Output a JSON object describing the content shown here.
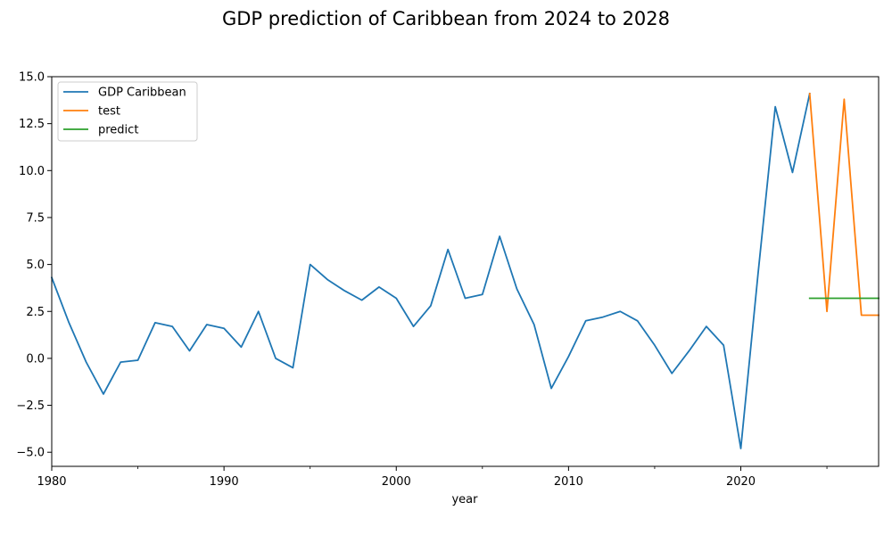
{
  "chart_data": {
    "type": "line",
    "title": "GDP prediction of Caribbean from 2024 to 2028",
    "xlabel": "year",
    "ylabel": "",
    "xlim": [
      1980,
      2028
    ],
    "ylim": [
      -5.75,
      15.0
    ],
    "x_ticks": [
      {
        "value": 1980,
        "label": "1980"
      },
      {
        "value": 1990,
        "label": "1990"
      },
      {
        "value": 2000,
        "label": "2000"
      },
      {
        "value": 2010,
        "label": "2010"
      },
      {
        "value": 2020,
        "label": "2020"
      }
    ],
    "x_minor_ticks": [
      1985,
      1995,
      2005,
      2015,
      2025
    ],
    "y_ticks": [
      {
        "value": -5.0,
        "label": "−5.0"
      },
      {
        "value": -2.5,
        "label": "−2.5"
      },
      {
        "value": 0.0,
        "label": "0.0"
      },
      {
        "value": 2.5,
        "label": "2.5"
      },
      {
        "value": 5.0,
        "label": "5.0"
      },
      {
        "value": 7.5,
        "label": "7.5"
      },
      {
        "value": 10.0,
        "label": "10.0"
      },
      {
        "value": 12.5,
        "label": "12.5"
      },
      {
        "value": 15.0,
        "label": "15.0"
      }
    ],
    "grid": false,
    "legend_position": "upper-left",
    "series": [
      {
        "name": "GDP Caribbean",
        "color": "#1f77b4",
        "x": [
          1980,
          1981,
          1982,
          1983,
          1984,
          1985,
          1986,
          1987,
          1988,
          1989,
          1990,
          1991,
          1992,
          1993,
          1994,
          1995,
          1996,
          1997,
          1998,
          1999,
          2000,
          2001,
          2002,
          2003,
          2004,
          2005,
          2006,
          2007,
          2008,
          2009,
          2010,
          2011,
          2012,
          2013,
          2014,
          2015,
          2016,
          2017,
          2018,
          2019,
          2020,
          2021,
          2022,
          2023,
          2024
        ],
        "values": [
          4.3,
          1.9,
          -0.2,
          -1.9,
          -0.2,
          -0.1,
          1.9,
          1.7,
          0.4,
          1.8,
          1.6,
          0.6,
          2.5,
          0.0,
          -0.5,
          5.0,
          4.2,
          3.6,
          3.1,
          3.8,
          3.2,
          1.7,
          2.8,
          5.8,
          3.2,
          3.4,
          6.5,
          3.7,
          1.8,
          -1.6,
          0.1,
          2.0,
          2.2,
          2.5,
          2.0,
          0.7,
          -0.8,
          0.4,
          1.7,
          0.7,
          -4.8,
          4.5,
          13.4,
          9.9,
          14.1
        ]
      },
      {
        "name": "test",
        "color": "#ff7f0e",
        "x": [
          2024,
          2025,
          2026,
          2027,
          2028
        ],
        "values": [
          14.1,
          2.5,
          13.8,
          2.3,
          2.3
        ]
      },
      {
        "name": "predict",
        "color": "#2ca02c",
        "x": [
          2024,
          2025,
          2026,
          2027,
          2028
        ],
        "values": [
          3.2,
          3.2,
          3.2,
          3.2,
          3.2
        ]
      }
    ]
  }
}
